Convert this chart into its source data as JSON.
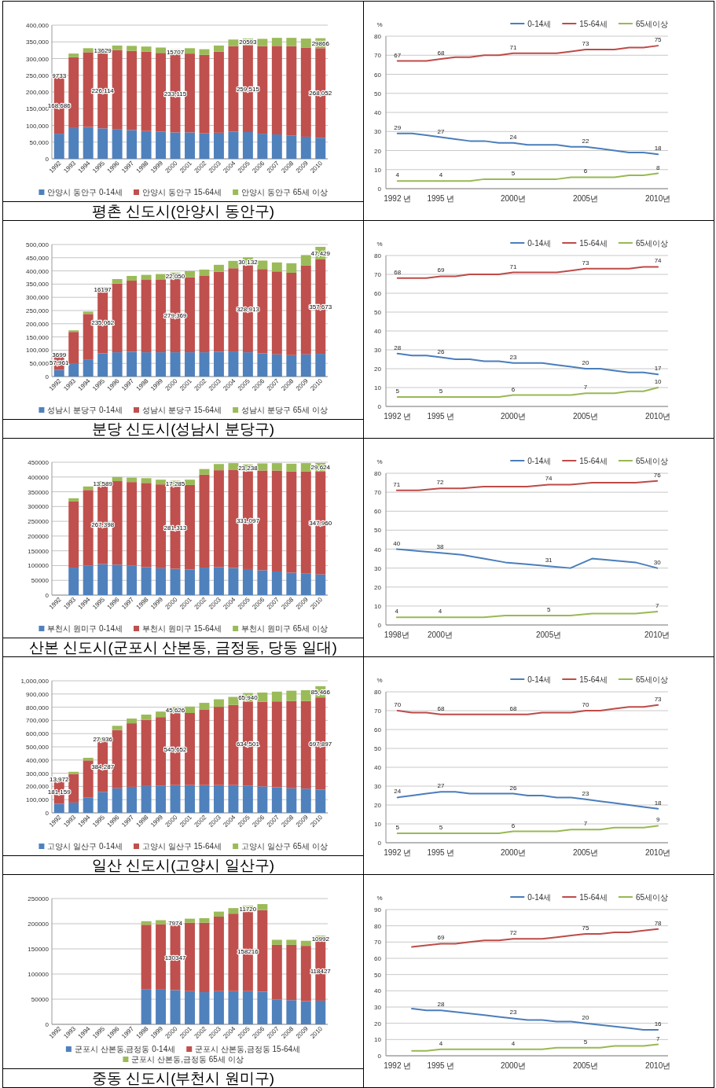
{
  "chart_data": [
    {
      "type": "bar",
      "stacked": true,
      "categories": [
        "1992",
        "1993",
        "1994",
        "1995",
        "1996",
        "1997",
        "1998",
        "1999",
        "2000",
        "2001",
        "2002",
        "2003",
        "2004",
        "2005",
        "2006",
        "2007",
        "2008",
        "2009",
        "2010"
      ],
      "series": [
        {
          "name": "안양시 동안구 0-14세",
          "color": "#4f81bd",
          "values": [
            75000,
            92000,
            95000,
            91000,
            89000,
            86000,
            83000,
            81000,
            79000,
            79000,
            76000,
            78000,
            81000,
            80000,
            75000,
            73000,
            70000,
            66000,
            63000
          ]
        },
        {
          "name": "안양시 동안구 15-64세",
          "color": "#c0504d",
          "values": [
            168686,
            212000,
            224000,
            226114,
            236000,
            237000,
            238000,
            236000,
            233115,
            236000,
            235000,
            243000,
            256000,
            259515,
            262000,
            265000,
            267000,
            267000,
            268052
          ],
          "value_labels": [
            "168,686",
            null,
            null,
            "226,114",
            null,
            null,
            null,
            null,
            "233,115",
            null,
            null,
            null,
            null,
            "259,515",
            null,
            null,
            null,
            null,
            "268,052"
          ]
        },
        {
          "name": "안양시 동안구 65세 이상",
          "color": "#9bbb59",
          "values": [
            9733,
            11000,
            12000,
            13629,
            14000,
            15000,
            15000,
            16000,
            15707,
            16000,
            17000,
            18000,
            20000,
            20593,
            22000,
            24000,
            25000,
            27000,
            29866
          ],
          "value_labels": [
            "9733",
            null,
            null,
            "13629",
            null,
            null,
            null,
            null,
            "15707",
            null,
            null,
            null,
            null,
            "20593",
            null,
            null,
            null,
            null,
            "29866"
          ]
        }
      ],
      "ylim": [
        0,
        400000
      ],
      "yticks": [
        0,
        {
          "value": 50000,
          "label": "50,000"
        },
        {
          "value": 100000,
          "label": "100,000"
        },
        {
          "value": 150000,
          "label": "150,000"
        },
        {
          "value": 200000,
          "label": "200,000"
        },
        {
          "value": 250000,
          "label": "250,000"
        },
        {
          "value": 300000,
          "label": "300,000"
        },
        {
          "value": 350000,
          "label": "350,000"
        },
        {
          "value": 400000,
          "label": "400,000"
        }
      ],
      "grid": "y",
      "legend": "bottom",
      "annotations": [
        "평촌 신도시(안양시 동안구)"
      ]
    },
    {
      "type": "line",
      "x": [
        1992,
        1993,
        1994,
        1995,
        1996,
        1997,
        1998,
        1999,
        2000,
        2001,
        2002,
        2003,
        2004,
        2005,
        2006,
        2007,
        2008,
        2009,
        2010
      ],
      "series": [
        {
          "name": "0-14세",
          "color": "#4a7ebb",
          "values": [
            29,
            29,
            28,
            27,
            26,
            25,
            25,
            24,
            24,
            23,
            23,
            23,
            22,
            22,
            21,
            20,
            19,
            19,
            18
          ],
          "value_labels": [
            "29",
            null,
            null,
            "27",
            null,
            null,
            null,
            null,
            "24",
            null,
            null,
            null,
            null,
            "22",
            null,
            null,
            null,
            null,
            "18"
          ]
        },
        {
          "name": "15-64세",
          "color": "#be4b48",
          "values": [
            67,
            67,
            67,
            68,
            69,
            69,
            70,
            70,
            71,
            71,
            71,
            71,
            72,
            73,
            73,
            73,
            74,
            74,
            75
          ],
          "value_labels": [
            "67",
            null,
            null,
            "68",
            null,
            null,
            null,
            null,
            "71",
            null,
            null,
            null,
            null,
            "73",
            null,
            null,
            null,
            null,
            "75"
          ]
        },
        {
          "name": "65세이상",
          "color": "#98b954",
          "values": [
            4,
            4,
            4,
            4,
            4,
            4,
            5,
            5,
            5,
            5,
            5,
            5,
            6,
            6,
            6,
            6,
            7,
            7,
            8
          ],
          "value_labels": [
            "4",
            null,
            null,
            "4",
            null,
            null,
            null,
            null,
            "5",
            null,
            null,
            null,
            null,
            "6",
            null,
            null,
            null,
            null,
            "8"
          ]
        }
      ],
      "xlim": [
        1991.2,
        2010.7
      ],
      "xticks": [
        {
          "value": 1992,
          "label": "1992 년"
        },
        {
          "value": 1995,
          "label": "1995 년"
        },
        {
          "value": 2000,
          "label": "2000년"
        },
        {
          "value": 2005,
          "label": "2005년"
        },
        {
          "value": 2010,
          "label": "2010년"
        }
      ],
      "ylim": [
        0,
        80
      ],
      "yticks": [
        0,
        10,
        20,
        30,
        40,
        50,
        60,
        70,
        80
      ],
      "ylabel": "%",
      "grid": "y",
      "legend": "top right"
    },
    {
      "type": "bar",
      "stacked": true,
      "categories": [
        "1992",
        "1993",
        "1994",
        "1995",
        "1996",
        "1997",
        "1998",
        "1999",
        "2000",
        "2001",
        "2002",
        "2003",
        "2004",
        "2005",
        "2006",
        "2007",
        "2008",
        "2009",
        "2010"
      ],
      "series": [
        {
          "name": "성남시 분당구 0-14세",
          "color": "#4f81bd",
          "values": [
            25000,
            48000,
            65000,
            88000,
            92000,
            94000,
            92000,
            92000,
            92000,
            92000,
            92000,
            94000,
            95000,
            92000,
            88000,
            84000,
            81000,
            84000,
            86000
          ]
        },
        {
          "name": "성남시 분당구 15-64세",
          "color": "#c0504d",
          "values": [
            57961,
            121000,
            172000,
            235062,
            260000,
            269000,
            274000,
            276000,
            279369,
            284000,
            289000,
            303000,
            315000,
            328913,
            319000,
            314000,
            312000,
            336000,
            357673
          ],
          "value_labels": [
            "57,961",
            null,
            null,
            "235,062",
            null,
            null,
            null,
            null,
            "279,369",
            null,
            null,
            null,
            null,
            "328,913",
            null,
            null,
            null,
            null,
            "357,673"
          ]
        },
        {
          "name": "성남시 분당구 65세 이상",
          "color": "#9bbb59",
          "values": [
            3699,
            6000,
            9000,
            16197,
            17000,
            18000,
            19000,
            20000,
            22050,
            23000,
            24000,
            26000,
            28000,
            30132,
            32000,
            34000,
            36000,
            40000,
            47429
          ],
          "value_labels": [
            "3699",
            null,
            null,
            "16197",
            null,
            null,
            null,
            null,
            "22,050",
            null,
            null,
            null,
            null,
            "30,132",
            null,
            null,
            null,
            null,
            "47,429"
          ]
        }
      ],
      "ylim": [
        0,
        500000
      ],
      "yticks": [
        0,
        {
          "value": 50000,
          "label": "50,000"
        },
        {
          "value": 100000,
          "label": "100,000"
        },
        {
          "value": 150000,
          "label": "150,000"
        },
        {
          "value": 200000,
          "label": "200,000"
        },
        {
          "value": 250000,
          "label": "250,000"
        },
        {
          "value": 300000,
          "label": "300,000"
        },
        {
          "value": 350000,
          "label": "350,000"
        },
        {
          "value": 400000,
          "label": "400,000"
        },
        {
          "value": 450000,
          "label": "450,000"
        },
        {
          "value": 500000,
          "label": "500,000"
        }
      ],
      "grid": "y",
      "legend": "bottom",
      "annotations": [
        "분당 신도시(성남시 분당구)"
      ]
    },
    {
      "type": "line",
      "x": [
        1992,
        1993,
        1994,
        1995,
        1996,
        1997,
        1998,
        1999,
        2000,
        2001,
        2002,
        2003,
        2004,
        2005,
        2006,
        2007,
        2008,
        2009,
        2010
      ],
      "series": [
        {
          "name": "0-14세",
          "color": "#4a7ebb",
          "values": [
            28,
            27,
            27,
            26,
            25,
            25,
            24,
            24,
            23,
            23,
            23,
            22,
            21,
            20,
            20,
            19,
            18,
            18,
            17
          ],
          "value_labels": [
            "28",
            null,
            null,
            "26",
            null,
            null,
            null,
            null,
            "23",
            null,
            null,
            null,
            null,
            "20",
            null,
            null,
            null,
            null,
            "17"
          ]
        },
        {
          "name": "15-64세",
          "color": "#be4b48",
          "values": [
            68,
            68,
            68,
            69,
            69,
            70,
            70,
            70,
            71,
            71,
            71,
            71,
            72,
            73,
            73,
            73,
            73,
            74,
            74
          ],
          "value_labels": [
            "68",
            null,
            null,
            "69",
            null,
            null,
            null,
            null,
            "71",
            null,
            null,
            null,
            null,
            "73",
            null,
            null,
            null,
            null,
            "74"
          ]
        },
        {
          "name": "65세이상",
          "color": "#98b954",
          "values": [
            5,
            5,
            5,
            5,
            5,
            5,
            5,
            5,
            6,
            6,
            6,
            6,
            6,
            7,
            7,
            7,
            8,
            8,
            10
          ],
          "value_labels": [
            "5",
            null,
            null,
            "5",
            null,
            null,
            null,
            null,
            "6",
            null,
            null,
            null,
            null,
            "7",
            null,
            null,
            null,
            null,
            "10"
          ]
        }
      ],
      "xlim": [
        1991.2,
        2010.7
      ],
      "xticks": [
        {
          "value": 1992,
          "label": "1992 년"
        },
        {
          "value": 1995,
          "label": "1995 년"
        },
        {
          "value": 2000,
          "label": "2000년"
        },
        {
          "value": 2005,
          "label": "2005년"
        },
        {
          "value": 2010,
          "label": "2010년"
        }
      ],
      "ylim": [
        0,
        80
      ],
      "yticks": [
        0,
        10,
        20,
        30,
        40,
        50,
        60,
        70,
        80
      ],
      "ylabel": "%",
      "grid": "y",
      "legend": "top right"
    },
    {
      "type": "bar",
      "stacked": true,
      "categories": [
        "1992",
        "1993",
        "1994",
        "1995",
        "1996",
        "1997",
        "1998",
        "1999",
        "2000",
        "2001",
        "2002",
        "2003",
        "2004",
        "2005",
        "2006",
        "2007",
        "2008",
        "2009",
        "2010"
      ],
      "series": [
        {
          "name": "부천시 원미구 0-14세",
          "color": "#4f81bd",
          "values": [
            null,
            93000,
            100000,
            105000,
            103000,
            100000,
            95000,
            91000,
            89000,
            87000,
            93000,
            95000,
            92000,
            88000,
            84000,
            80000,
            76000,
            74000,
            70000
          ]
        },
        {
          "name": "부천시 원미구 15-64세",
          "color": "#c0504d",
          "values": [
            null,
            224000,
            256000,
            267398,
            283000,
            283000,
            285000,
            284000,
            281313,
            286000,
            315000,
            328000,
            333000,
            331097,
            338000,
            342000,
            343000,
            345000,
            347960
          ],
          "value_labels": [
            null,
            null,
            null,
            "267,398",
            null,
            null,
            null,
            null,
            "281,313",
            null,
            null,
            null,
            null,
            "331,097",
            null,
            null,
            null,
            null,
            "347,960"
          ]
        },
        {
          "name": "부천시 원미구 65세 이상",
          "color": "#9bbb59",
          "values": [
            null,
            11000,
            12000,
            13589,
            14000,
            15000,
            16000,
            16000,
            17285,
            18000,
            19000,
            21000,
            22000,
            23238,
            24000,
            25000,
            26000,
            28000,
            29624
          ],
          "value_labels": [
            null,
            null,
            null,
            "13,589",
            null,
            null,
            null,
            null,
            "17,285",
            null,
            null,
            null,
            null,
            "23,238",
            null,
            null,
            null,
            null,
            "29,624"
          ]
        }
      ],
      "ylim": [
        0,
        450000
      ],
      "yticks": [
        0,
        50000,
        100000,
        150000,
        200000,
        250000,
        300000,
        350000,
        400000,
        450000
      ],
      "grid": "y",
      "legend": "bottom",
      "annotations": [
        "산본 신도시(군포시 산본동, 금정동, 당동 일대)"
      ]
    },
    {
      "type": "line",
      "x": [
        1998,
        1999,
        2000,
        2001,
        2002,
        2003,
        2004,
        2005,
        2006,
        2007,
        2008,
        2009,
        2010
      ],
      "series": [
        {
          "name": "0-14세",
          "color": "#4a7ebb",
          "values": [
            40,
            39,
            38,
            37,
            35,
            33,
            32,
            31,
            30,
            35,
            34,
            33,
            30
          ],
          "value_labels": [
            "40",
            null,
            "38",
            null,
            null,
            null,
            null,
            "31",
            null,
            null,
            null,
            null,
            "30"
          ]
        },
        {
          "name": "15-64세",
          "color": "#be4b48",
          "values": [
            71,
            71,
            72,
            72,
            73,
            73,
            73,
            74,
            74,
            75,
            75,
            75,
            76
          ],
          "value_labels": [
            "71",
            null,
            "72",
            null,
            null,
            null,
            null,
            "74",
            null,
            null,
            null,
            null,
            "76"
          ]
        },
        {
          "name": "65세이상",
          "color": "#98b954",
          "values": [
            4,
            4,
            4,
            4,
            4,
            5,
            5,
            5,
            5,
            6,
            6,
            6,
            7
          ],
          "value_labels": [
            "4",
            null,
            "4",
            null,
            null,
            null,
            null,
            "5",
            null,
            null,
            null,
            null,
            "7"
          ]
        }
      ],
      "xlim": [
        1997.5,
        2010.5
      ],
      "xticks": [
        {
          "value": 1998,
          "label": "1998년"
        },
        {
          "value": 2000,
          "label": "2000년"
        },
        {
          "value": 2005,
          "label": "2005년"
        },
        {
          "value": 2010,
          "label": "2010년"
        }
      ],
      "ylim": [
        0,
        80
      ],
      "yticks": [
        0,
        10,
        20,
        30,
        40,
        50,
        60,
        70,
        80
      ],
      "ylabel": "%",
      "grid": "y",
      "legend": "top right"
    },
    {
      "type": "bar",
      "stacked": true,
      "categories": [
        "1992",
        "1993",
        "1994",
        "1995",
        "1996",
        "1997",
        "1998",
        "1999",
        "2000",
        "2001",
        "2002",
        "2003",
        "2004",
        "2005",
        "2006",
        "2007",
        "2008",
        "2009",
        "2010"
      ],
      "series": [
        {
          "name": "고양시 일산구 0-14세",
          "color": "#4f81bd",
          "values": [
            68000,
            78000,
            115000,
            159000,
            186000,
            197000,
            203000,
            207000,
            210000,
            210000,
            210000,
            210000,
            210000,
            207000,
            200000,
            193000,
            186000,
            183000,
            176000
          ]
        },
        {
          "name": "고양시 일산구 15-64세",
          "color": "#c0504d",
          "values": [
            181159,
            217000,
            282000,
            384287,
            441000,
            481000,
            502000,
            518000,
            545652,
            546000,
            570000,
            593000,
            607000,
            634501,
            641000,
            651000,
            661000,
            664000,
            697897
          ],
          "value_labels": [
            "181,159",
            null,
            null,
            "384,287",
            null,
            null,
            null,
            null,
            "545,652",
            null,
            null,
            null,
            null,
            "634,501",
            null,
            null,
            null,
            null,
            "697,897"
          ]
        },
        {
          "name": "고양시 일산구 65세 이상",
          "color": "#9bbb59",
          "values": [
            13972,
            16000,
            20000,
            27936,
            32000,
            36000,
            39000,
            42000,
            45626,
            49000,
            53000,
            57000,
            61000,
            65940,
            70000,
            74000,
            78000,
            82000,
            85466
          ],
          "value_labels": [
            "13,972",
            null,
            null,
            "27,936",
            null,
            null,
            null,
            null,
            "45,626",
            null,
            null,
            null,
            null,
            "65,940",
            null,
            null,
            null,
            null,
            "85,466"
          ]
        }
      ],
      "ylim": [
        0,
        1000000
      ],
      "yticks": [
        0,
        {
          "value": 100000,
          "label": "100,000"
        },
        {
          "value": 200000,
          "label": "200,000"
        },
        {
          "value": 300000,
          "label": "300,000"
        },
        {
          "value": 400000,
          "label": "400,000"
        },
        {
          "value": 500000,
          "label": "500,000"
        },
        {
          "value": 600000,
          "label": "600,000"
        },
        {
          "value": 700000,
          "label": "700,000"
        },
        {
          "value": 800000,
          "label": "800,000"
        },
        {
          "value": 900000,
          "label": "900,000"
        },
        {
          "value": 1000000,
          "label": "1,000,000"
        }
      ],
      "grid": "y",
      "legend": "bottom",
      "annotations": [
        "일산 신도시(고양시 일산구)"
      ]
    },
    {
      "type": "line",
      "x": [
        1992,
        1993,
        1994,
        1995,
        1996,
        1997,
        1998,
        1999,
        2000,
        2001,
        2002,
        2003,
        2004,
        2005,
        2006,
        2007,
        2008,
        2009,
        2010
      ],
      "series": [
        {
          "name": "0-14세",
          "color": "#4a7ebb",
          "values": [
            24,
            25,
            26,
            27,
            27,
            26,
            26,
            26,
            26,
            25,
            25,
            24,
            24,
            23,
            22,
            21,
            20,
            19,
            18
          ],
          "value_labels": [
            "24",
            null,
            null,
            "27",
            null,
            null,
            null,
            null,
            "26",
            null,
            null,
            null,
            null,
            "23",
            null,
            null,
            null,
            null,
            "18"
          ]
        },
        {
          "name": "15-64세",
          "color": "#be4b48",
          "values": [
            70,
            69,
            69,
            68,
            68,
            68,
            68,
            68,
            68,
            68,
            69,
            69,
            69,
            70,
            70,
            71,
            72,
            72,
            73
          ],
          "value_labels": [
            "70",
            null,
            null,
            "68",
            null,
            null,
            null,
            null,
            "68",
            null,
            null,
            null,
            null,
            "70",
            null,
            null,
            null,
            null,
            "73"
          ]
        },
        {
          "name": "65세이상",
          "color": "#98b954",
          "values": [
            5,
            5,
            5,
            5,
            5,
            5,
            5,
            5,
            6,
            6,
            6,
            6,
            7,
            7,
            7,
            8,
            8,
            8,
            9
          ],
          "value_labels": [
            "5",
            null,
            null,
            "5",
            null,
            null,
            null,
            null,
            "6",
            null,
            null,
            null,
            null,
            "7",
            null,
            null,
            null,
            null,
            "9"
          ]
        }
      ],
      "xlim": [
        1991.2,
        2010.7
      ],
      "xticks": [
        {
          "value": 1992,
          "label": "1992 년"
        },
        {
          "value": 1995,
          "label": "1995 년"
        },
        {
          "value": 2000,
          "label": "2000년"
        },
        {
          "value": 2005,
          "label": "2005년"
        },
        {
          "value": 2010,
          "label": "2010년"
        }
      ],
      "ylim": [
        0,
        80
      ],
      "yticks": [
        0,
        10,
        20,
        30,
        40,
        50,
        60,
        70,
        80
      ],
      "ylabel": "%",
      "grid": "y",
      "legend": "top right"
    },
    {
      "type": "bar",
      "stacked": true,
      "categories": [
        "1992",
        "1993",
        "1994",
        "1995",
        "1996",
        "1997",
        "1998",
        "1999",
        "2000",
        "2001",
        "2002",
        "2003",
        "2004",
        "2005",
        "2006",
        "2007",
        "2008",
        "2009",
        "2010"
      ],
      "series": [
        {
          "name": "군포시 산본동,금정동 0-14세",
          "color": "#4f81bd",
          "values": [
            null,
            null,
            null,
            null,
            null,
            null,
            70000,
            69000,
            68000,
            66000,
            64000,
            66000,
            66000,
            66000,
            65000,
            49000,
            48000,
            46000,
            47000
          ]
        },
        {
          "name": "군포시 산본동,금정동 15-64세",
          "color": "#c0504d",
          "values": [
            null,
            null,
            null,
            null,
            null,
            null,
            128000,
            130000,
            130347,
            136000,
            138000,
            148000,
            154000,
            158216,
            162000,
            109000,
            110000,
            110000,
            118427
          ],
          "value_labels": [
            null,
            null,
            null,
            null,
            null,
            null,
            null,
            null,
            "130347",
            null,
            null,
            null,
            null,
            "158216",
            null,
            null,
            null,
            null,
            "118427"
          ]
        },
        {
          "name": "군포시 산본동,금정동 65세 이상",
          "color": "#9bbb59",
          "values": [
            null,
            null,
            null,
            null,
            null,
            null,
            7000,
            8000,
            7974,
            8000,
            9000,
            10000,
            11000,
            11720,
            12000,
            10000,
            10000,
            10000,
            10992
          ],
          "value_labels": [
            null,
            null,
            null,
            null,
            null,
            null,
            null,
            null,
            "7974",
            null,
            null,
            null,
            null,
            "11720",
            null,
            null,
            null,
            null,
            "10992"
          ]
        }
      ],
      "ylim": [
        0,
        250000
      ],
      "yticks": [
        0,
        50000,
        100000,
        150000,
        200000,
        250000
      ],
      "grid": "y",
      "legend": "bottom",
      "annotations": [
        "중동 신도시(부천시 원미구)"
      ]
    },
    {
      "type": "line",
      "x": [
        1993,
        1994,
        1995,
        1996,
        1997,
        1998,
        1999,
        2000,
        2001,
        2002,
        2003,
        2004,
        2005,
        2006,
        2007,
        2008,
        2009,
        2010
      ],
      "series": [
        {
          "name": "0-14세",
          "color": "#4a7ebb",
          "values": [
            29,
            28,
            28,
            27,
            26,
            25,
            24,
            23,
            22,
            22,
            21,
            21,
            20,
            19,
            18,
            17,
            16,
            16
          ],
          "value_labels": [
            null,
            null,
            "28",
            null,
            null,
            null,
            null,
            "23",
            null,
            null,
            null,
            null,
            "20",
            null,
            null,
            null,
            null,
            "16"
          ]
        },
        {
          "name": "15-64세",
          "color": "#be4b48",
          "values": [
            67,
            68,
            69,
            69,
            70,
            71,
            71,
            72,
            72,
            72,
            73,
            74,
            75,
            75,
            76,
            76,
            77,
            78
          ],
          "value_labels": [
            null,
            null,
            "69",
            null,
            null,
            null,
            null,
            "72",
            null,
            null,
            null,
            null,
            "75",
            null,
            null,
            null,
            null,
            "78"
          ]
        },
        {
          "name": "65세이상",
          "color": "#98b954",
          "values": [
            3,
            3,
            4,
            4,
            4,
            4,
            4,
            4,
            4,
            4,
            5,
            5,
            5,
            5,
            6,
            6,
            6,
            7
          ],
          "value_labels": [
            null,
            null,
            "4",
            null,
            null,
            null,
            null,
            "4",
            null,
            null,
            null,
            null,
            "5",
            null,
            null,
            null,
            null,
            "7"
          ]
        }
      ],
      "xlim": [
        1991.2,
        2010.7
      ],
      "xticks": [
        {
          "value": 1992,
          "label": "1992 년"
        },
        {
          "value": 1995,
          "label": "1995 년"
        },
        {
          "value": 2000,
          "label": "2000년"
        },
        {
          "value": 2005,
          "label": "2005년"
        },
        {
          "value": 2010,
          "label": "2010년"
        }
      ],
      "ylim": [
        0,
        90
      ],
      "yticks": [
        0,
        10,
        20,
        30,
        40,
        50,
        60,
        70,
        80,
        90
      ],
      "ylabel": "%",
      "grid": "y",
      "legend": "top right"
    }
  ]
}
